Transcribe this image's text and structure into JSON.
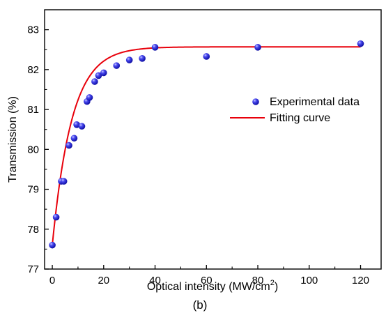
{
  "chart_data": {
    "type": "scatter",
    "panel_label": "(b)",
    "xlabel_prefix": "Optical intensity (MW/cm",
    "xlabel_sup": "2",
    "xlabel_suffix": ")",
    "ylabel": "Transmission (%)",
    "xlim": [
      -3,
      128
    ],
    "ylim": [
      77,
      83.5
    ],
    "x_ticks": [
      0,
      20,
      40,
      60,
      80,
      100,
      120
    ],
    "y_ticks": [
      77,
      78,
      79,
      80,
      81,
      82,
      83
    ],
    "grid": false,
    "legend_position": "right",
    "series": [
      {
        "name": "Experimental data",
        "kind": "points",
        "color": "#1f1fd6",
        "x": [
          0,
          1.5,
          3.5,
          4.5,
          6.5,
          8.5,
          9.5,
          11.5,
          13.5,
          14.5,
          16.5,
          18,
          20,
          25,
          30,
          35,
          40,
          60,
          80,
          120
        ],
        "y": [
          77.6,
          78.3,
          79.2,
          79.2,
          80.1,
          80.28,
          80.62,
          80.58,
          81.2,
          81.3,
          81.7,
          81.85,
          81.92,
          82.1,
          82.24,
          82.28,
          82.56,
          82.33,
          82.56,
          82.65
        ]
      },
      {
        "name": "Fitting curve",
        "kind": "line",
        "color": "#e8000b",
        "model": "saturable absorption fit",
        "params": {
          "T_sat": 82.57,
          "delta_T": 4.97,
          "I_decay": 7.6
        }
      }
    ]
  }
}
